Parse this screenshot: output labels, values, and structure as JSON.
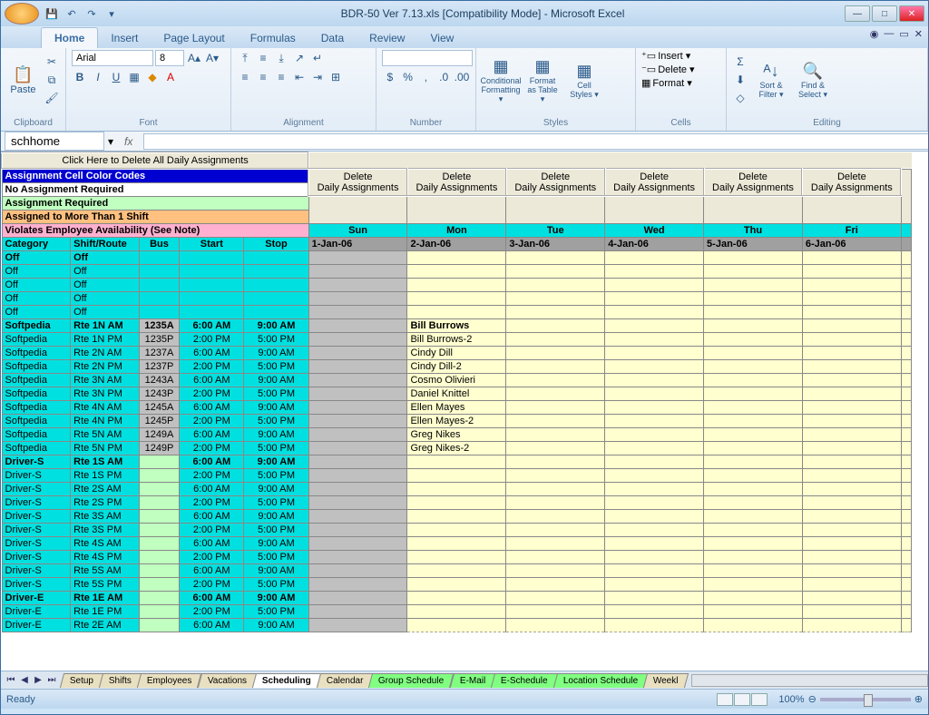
{
  "title": "BDR-50 Ver 7.13.xls  [Compatibility Mode] - Microsoft Excel",
  "tabs": [
    "Home",
    "Insert",
    "Page Layout",
    "Formulas",
    "Data",
    "Review",
    "View"
  ],
  "active_tab": "Home",
  "font": {
    "name": "Arial",
    "size": "8"
  },
  "groups": [
    "Clipboard",
    "Font",
    "Alignment",
    "Number",
    "Styles",
    "Cells",
    "Editing"
  ],
  "styles_btns": {
    "cond": "Conditional Formatting ▾",
    "table": "Format as Table ▾",
    "cell": "Cell Styles ▾"
  },
  "cells_btns": {
    "ins": "Insert ▾",
    "del": "Delete ▾",
    "fmt": "Format ▾"
  },
  "edit_btns": {
    "sort": "Sort & Filter ▾",
    "find": "Find & Select ▾"
  },
  "name_box": "schhome",
  "delete_all_btn": "Click Here to Delete All Daily Assignments",
  "legend": {
    "color_codes": "Assignment Cell Color Codes",
    "no_assign": "No Assignment Required",
    "assign_req": "Assignment Required",
    "multi": "Assigned to More Than 1 Shift",
    "violates": "Violates Employee Availability (See Note)"
  },
  "del_daily": "Delete Daily Assignments",
  "days": [
    "Sun",
    "Mon",
    "Tue",
    "Wed",
    "Thu",
    "Fri"
  ],
  "dates": [
    "1-Jan-06",
    "2-Jan-06",
    "3-Jan-06",
    "4-Jan-06",
    "5-Jan-06",
    "6-Jan-06"
  ],
  "cols": {
    "cat": "Category",
    "shift": "Shift/Route",
    "bus": "Bus",
    "start": "Start",
    "stop": "Stop"
  },
  "off_rows": [
    {
      "cat": "Off",
      "shift": "Off",
      "bold": true
    },
    {
      "cat": "Off",
      "shift": "Off"
    },
    {
      "cat": "Off",
      "shift": "Off"
    },
    {
      "cat": "Off",
      "shift": "Off"
    },
    {
      "cat": "Off",
      "shift": "Off"
    }
  ],
  "softpedia_rows": [
    {
      "cat": "Softpedia",
      "shift": "Rte 1N AM",
      "bus": "1235A",
      "start": "6:00 AM",
      "stop": "9:00 AM",
      "emp": "Bill Burrows",
      "bold": true
    },
    {
      "cat": "Softpedia",
      "shift": "Rte 1N PM",
      "bus": "1235P",
      "start": "2:00 PM",
      "stop": "5:00 PM",
      "emp": "Bill Burrows-2"
    },
    {
      "cat": "Softpedia",
      "shift": "Rte 2N AM",
      "bus": "1237A",
      "start": "6:00 AM",
      "stop": "9:00 AM",
      "emp": "Cindy Dill"
    },
    {
      "cat": "Softpedia",
      "shift": "Rte 2N PM",
      "bus": "1237P",
      "start": "2:00 PM",
      "stop": "5:00 PM",
      "emp": "Cindy Dill-2"
    },
    {
      "cat": "Softpedia",
      "shift": "Rte 3N AM",
      "bus": "1243A",
      "start": "6:00 AM",
      "stop": "9:00 AM",
      "emp": "Cosmo Olivieri"
    },
    {
      "cat": "Softpedia",
      "shift": "Rte 3N PM",
      "bus": "1243P",
      "start": "2:00 PM",
      "stop": "5:00 PM",
      "emp": "Daniel Knittel"
    },
    {
      "cat": "Softpedia",
      "shift": "Rte 4N AM",
      "bus": "1245A",
      "start": "6:00 AM",
      "stop": "9:00 AM",
      "emp": "Ellen Mayes"
    },
    {
      "cat": "Softpedia",
      "shift": "Rte 4N PM",
      "bus": "1245P",
      "start": "2:00 PM",
      "stop": "5:00 PM",
      "emp": "Ellen Mayes-2"
    },
    {
      "cat": "Softpedia",
      "shift": "Rte 5N AM",
      "bus": "1249A",
      "start": "6:00 AM",
      "stop": "9:00 AM",
      "emp": "Greg Nikes"
    },
    {
      "cat": "Softpedia",
      "shift": "Rte 5N PM",
      "bus": "1249P",
      "start": "2:00 PM",
      "stop": "5:00 PM",
      "emp": "Greg Nikes-2"
    }
  ],
  "driver_s_rows": [
    {
      "cat": "Driver-S",
      "shift": "Rte 1S AM",
      "start": "6:00 AM",
      "stop": "9:00 AM",
      "bold": true
    },
    {
      "cat": "Driver-S",
      "shift": "Rte 1S PM",
      "start": "2:00 PM",
      "stop": "5:00 PM"
    },
    {
      "cat": "Driver-S",
      "shift": "Rte 2S AM",
      "start": "6:00 AM",
      "stop": "9:00 AM"
    },
    {
      "cat": "Driver-S",
      "shift": "Rte 2S PM",
      "start": "2:00 PM",
      "stop": "5:00 PM"
    },
    {
      "cat": "Driver-S",
      "shift": "Rte 3S AM",
      "start": "6:00 AM",
      "stop": "9:00 AM"
    },
    {
      "cat": "Driver-S",
      "shift": "Rte 3S PM",
      "start": "2:00 PM",
      "stop": "5:00 PM"
    },
    {
      "cat": "Driver-S",
      "shift": "Rte 4S AM",
      "start": "6:00 AM",
      "stop": "9:00 AM"
    },
    {
      "cat": "Driver-S",
      "shift": "Rte 4S PM",
      "start": "2:00 PM",
      "stop": "5:00 PM"
    },
    {
      "cat": "Driver-S",
      "shift": "Rte 5S AM",
      "start": "6:00 AM",
      "stop": "9:00 AM"
    },
    {
      "cat": "Driver-S",
      "shift": "Rte 5S PM",
      "start": "2:00 PM",
      "stop": "5:00 PM"
    }
  ],
  "driver_e_rows": [
    {
      "cat": "Driver-E",
      "shift": "Rte 1E AM",
      "start": "6:00 AM",
      "stop": "9:00 AM",
      "bold": true
    },
    {
      "cat": "Driver-E",
      "shift": "Rte 1E PM",
      "start": "2:00 PM",
      "stop": "5:00 PM"
    },
    {
      "cat": "Driver-E",
      "shift": "Rte 2E AM",
      "start": "6:00 AM",
      "stop": "9:00 AM"
    }
  ],
  "sheet_tabs": [
    {
      "label": "Setup",
      "cls": ""
    },
    {
      "label": "Shifts",
      "cls": ""
    },
    {
      "label": "Employees",
      "cls": ""
    },
    {
      "label": "Vacations",
      "cls": ""
    },
    {
      "label": "Scheduling",
      "cls": "active"
    },
    {
      "label": "Calendar",
      "cls": ""
    },
    {
      "label": "Group Schedule",
      "cls": "green"
    },
    {
      "label": "E-Mail",
      "cls": "green"
    },
    {
      "label": "E-Schedule",
      "cls": "green"
    },
    {
      "label": "Location Schedule",
      "cls": "green"
    },
    {
      "label": "Weekl",
      "cls": ""
    }
  ],
  "status": "Ready",
  "zoom": "100%",
  "colors": {
    "cyan": "#00e0e0",
    "ltgreen": "#c0ffc0",
    "gray": "#c0c0c0",
    "yellow": "#ffffd0",
    "blue": "#0000d0",
    "orange": "#ffc080",
    "pink": "#ffb0d0"
  }
}
